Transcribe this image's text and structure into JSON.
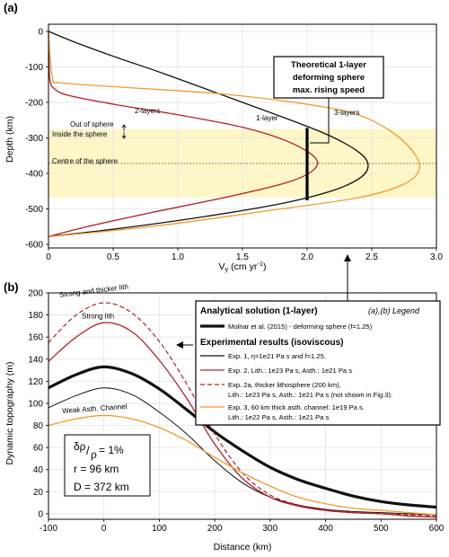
{
  "chart_data": [
    {
      "panel_label": "(a)",
      "type": "line",
      "xlabel_base": "V",
      "xlabel_sub": "y",
      "xlabel_unit": " (cm yr",
      "xlabel_sup": "-1",
      "xlabel_close": ")",
      "ylabel": "Depth (km)",
      "xlim": [
        0,
        3
      ],
      "ylim": [
        -610,
        20
      ],
      "xticks": [
        0,
        0.5,
        1.0,
        1.5,
        2.0,
        2.5,
        3.0
      ],
      "xtick_labels": [
        "0",
        "0.5",
        "1.0",
        "1.5",
        "2.0",
        "2.5",
        "3.0"
      ],
      "yticks": [
        0,
        -100,
        -200,
        -300,
        -400,
        -500,
        -600
      ],
      "ytick_labels": [
        "0",
        "-100",
        "-200",
        "-300",
        "-400",
        "-500",
        "-600"
      ],
      "grid": true,
      "sphere_band": [
        -276,
        -468
      ],
      "sphere_band_color": "#fdf6c6",
      "sphere_centre_depth": -372,
      "sphere_centre_label": "Centre of the sphere",
      "out_label": "Out of sphere",
      "in_label": "Inside the sphere",
      "max_speed_line": {
        "x": 2.0,
        "y_top": -272,
        "y_bottom": -476
      },
      "callout": [
        "Theoretical 1-layer",
        "deforming sphere",
        "max. rising speed"
      ],
      "series": [
        {
          "name": "1-layer",
          "color": "#111111",
          "points": [
            [
              0,
              0
            ],
            [
              0.2,
              -30
            ],
            [
              0.5,
              -70
            ],
            [
              0.9,
              -120
            ],
            [
              1.35,
              -180
            ],
            [
              1.8,
              -240
            ],
            [
              2.15,
              -290
            ],
            [
              2.38,
              -335
            ],
            [
              2.47,
              -372
            ],
            [
              2.42,
              -410
            ],
            [
              2.2,
              -448
            ],
            [
              1.8,
              -485
            ],
            [
              1.2,
              -522
            ],
            [
              0.55,
              -555
            ],
            [
              0,
              -578
            ]
          ]
        },
        {
          "name": "2-layers",
          "color": "#b3202a",
          "points": [
            [
              0,
              0
            ],
            [
              0.005,
              -100
            ],
            [
              0.012,
              -140
            ],
            [
              0.04,
              -160
            ],
            [
              0.15,
              -180
            ],
            [
              0.5,
              -205
            ],
            [
              1.0,
              -235
            ],
            [
              1.5,
              -270
            ],
            [
              1.85,
              -310
            ],
            [
              2.06,
              -355
            ],
            [
              2.05,
              -390
            ],
            [
              1.85,
              -425
            ],
            [
              1.4,
              -465
            ],
            [
              0.8,
              -510
            ],
            [
              0.3,
              -550
            ],
            [
              0,
              -578
            ]
          ]
        },
        {
          "name": "3-layers",
          "color": "#f29a2e",
          "points": [
            [
              0,
              0
            ],
            [
              0.03,
              -130
            ],
            [
              0.1,
              -145
            ],
            [
              0.6,
              -158
            ],
            [
              1.3,
              -175
            ],
            [
              1.9,
              -200
            ],
            [
              2.35,
              -230
            ],
            [
              2.62,
              -275
            ],
            [
              2.8,
              -330
            ],
            [
              2.87,
              -385
            ],
            [
              2.75,
              -430
            ],
            [
              2.4,
              -468
            ],
            [
              1.7,
              -505
            ],
            [
              0.9,
              -545
            ],
            [
              0.3,
              -568
            ],
            [
              0,
              -578
            ]
          ]
        }
      ]
    },
    {
      "panel_label": "(b)",
      "type": "line",
      "xlabel": "Distance (km)",
      "ylabel": "Dynamic topography (m)",
      "xlim": [
        -100,
        600
      ],
      "ylim": [
        -5,
        200
      ],
      "xticks": [
        -100,
        0,
        100,
        200,
        300,
        400,
        500,
        600
      ],
      "xtick_labels": [
        "-100",
        "0",
        "100",
        "200",
        "300",
        "400",
        "500",
        "600"
      ],
      "yticks": [
        0,
        20,
        40,
        60,
        80,
        100,
        120,
        140,
        160,
        180,
        200
      ],
      "ytick_labels": [
        "0",
        "20",
        "40",
        "60",
        "80",
        "100",
        "120",
        "140",
        "160",
        "180",
        "200"
      ],
      "grid": true,
      "curve_labels": [
        {
          "text": "Strong and thicker lith",
          "x": -80,
          "y": 196,
          "angle": -7
        },
        {
          "text": "Strong lith",
          "x": -40,
          "y": 177,
          "angle": 0
        },
        {
          "text": "Weak Asth. Channel",
          "x": -75,
          "y": 91,
          "angle": -4
        }
      ],
      "params": {
        "ratio_top": "δρ",
        "ratio_bottom": "ρ",
        "ratio_value": " = 1%",
        "r": "r = 96 km",
        "D": "D = 372 km"
      },
      "series": [
        {
          "name": "Molnar et al. (2015) - deforming sphere (f=1.25)",
          "color": "#111111",
          "width": 3.2,
          "points": [
            [
              -100,
              114
            ],
            [
              -50,
              126
            ],
            [
              0,
              133
            ],
            [
              50,
              127
            ],
            [
              100,
              113
            ],
            [
              150,
              94
            ],
            [
              200,
              74
            ],
            [
              250,
              57
            ],
            [
              300,
              42
            ],
            [
              350,
              31
            ],
            [
              400,
              23
            ],
            [
              450,
              16
            ],
            [
              500,
              11
            ],
            [
              550,
              8
            ],
            [
              600,
              6
            ]
          ]
        },
        {
          "name": "Exp. 1",
          "color": "#111111",
          "width": 1,
          "dash": "",
          "points": [
            [
              -100,
              96
            ],
            [
              -50,
              107
            ],
            [
              0,
              114
            ],
            [
              50,
              108
            ],
            [
              100,
              92
            ],
            [
              150,
              72
            ],
            [
              200,
              48
            ],
            [
              250,
              28
            ],
            [
              300,
              15
            ],
            [
              350,
              8
            ],
            [
              400,
              4
            ],
            [
              450,
              2
            ],
            [
              500,
              1
            ],
            [
              550,
              0
            ],
            [
              600,
              -1
            ]
          ]
        },
        {
          "name": "Exp. 2",
          "color": "#b3202a",
          "width": 1.3,
          "dash": "",
          "points": [
            [
              -100,
              138
            ],
            [
              -50,
              160
            ],
            [
              0,
              173
            ],
            [
              50,
              165
            ],
            [
              100,
              139
            ],
            [
              150,
              104
            ],
            [
              200,
              63
            ],
            [
              250,
              32
            ],
            [
              300,
              15
            ],
            [
              350,
              7
            ],
            [
              400,
              3
            ],
            [
              450,
              1
            ],
            [
              500,
              0
            ],
            [
              550,
              -2
            ],
            [
              600,
              -3
            ]
          ]
        },
        {
          "name": "Exp. 2a",
          "color": "#b3202a",
          "width": 1.2,
          "dash": "5,3",
          "points": [
            [
              -100,
              155
            ],
            [
              -50,
              180
            ],
            [
              0,
              191
            ],
            [
              50,
              182
            ],
            [
              100,
              156
            ],
            [
              150,
              117
            ],
            [
              200,
              72
            ],
            [
              250,
              37
            ],
            [
              300,
              17
            ],
            [
              350,
              8
            ],
            [
              400,
              3
            ],
            [
              450,
              1
            ],
            [
              500,
              0
            ],
            [
              550,
              -1
            ],
            [
              600,
              -2
            ]
          ]
        },
        {
          "name": "Exp. 3",
          "color": "#f29a2e",
          "width": 1.3,
          "dash": "",
          "points": [
            [
              -100,
              80
            ],
            [
              -50,
              86
            ],
            [
              0,
              89
            ],
            [
              50,
              86
            ],
            [
              100,
              78
            ],
            [
              150,
              66
            ],
            [
              200,
              51
            ],
            [
              250,
              37
            ],
            [
              300,
              25
            ],
            [
              350,
              15
            ],
            [
              400,
              9
            ],
            [
              450,
              5
            ],
            [
              500,
              3
            ],
            [
              550,
              1
            ],
            [
              600,
              -1
            ]
          ]
        }
      ]
    }
  ],
  "legend": {
    "title": "Analytical solution (1-layer)",
    "subtitle": "(a),(b) Legend",
    "analytical_entry": "Molnar et al. (2015) - deforming sphere (f=1.25)",
    "exp_title": "Experimental results (isoviscous)",
    "entries": [
      {
        "color": "#111111",
        "dash": "",
        "line1": "Exp. 1, η=1e21 Pa s and f=1.25.",
        "line2": ""
      },
      {
        "color": "#b3202a",
        "dash": "",
        "line1": "Exp. 2, Lith.: 1e23 Pa s, Asth.: 1e21 Pa s",
        "line2": ""
      },
      {
        "color": "#b3202a",
        "dash": "5,3",
        "line1": "Exp. 2a, thicker lithosphere (200 km),",
        "line2": "Lith.: 1e23 Pa s, Asth.: 1e21 Pa s (not shown in Fig.3)."
      },
      {
        "color": "#f29a2e",
        "dash": "",
        "line1": "Exp. 3, 60 km thick asth. channel: 1e19 Pa s.",
        "line2": "Lith.: 1e22 Pa s, Asth.: 1e21 Pa s"
      }
    ]
  }
}
